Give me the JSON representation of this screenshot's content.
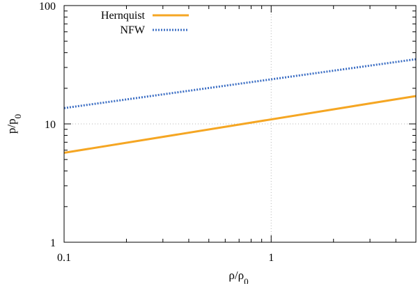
{
  "chart_data": {
    "type": "line",
    "title": "",
    "xlabel": "ρ/ρ",
    "xlabel_sub": "0",
    "ylabel": "p/p",
    "ylabel_sub": "0",
    "x_scale": "log",
    "y_scale": "log",
    "xlim": [
      0.1,
      5
    ],
    "ylim": [
      1,
      100
    ],
    "x_ticks": [
      {
        "value": 0.1,
        "label": "0.1"
      },
      {
        "value": 1,
        "label": "1"
      }
    ],
    "y_ticks": [
      {
        "value": 1,
        "label": "1"
      },
      {
        "value": 10,
        "label": "10"
      },
      {
        "value": 100,
        "label": "100"
      }
    ],
    "grid": "dotted, at major ticks",
    "legend_position": "top-left",
    "series": [
      {
        "name": "Hernquist",
        "color": "#f5a623",
        "style": "solid",
        "x": [
          0.1,
          5
        ],
        "y": [
          5.7,
          17.2
        ]
      },
      {
        "name": "NFW",
        "color": "#3d6fc4",
        "style": "dotted",
        "x": [
          0.1,
          5
        ],
        "y": [
          13.6,
          35.2
        ]
      }
    ]
  }
}
